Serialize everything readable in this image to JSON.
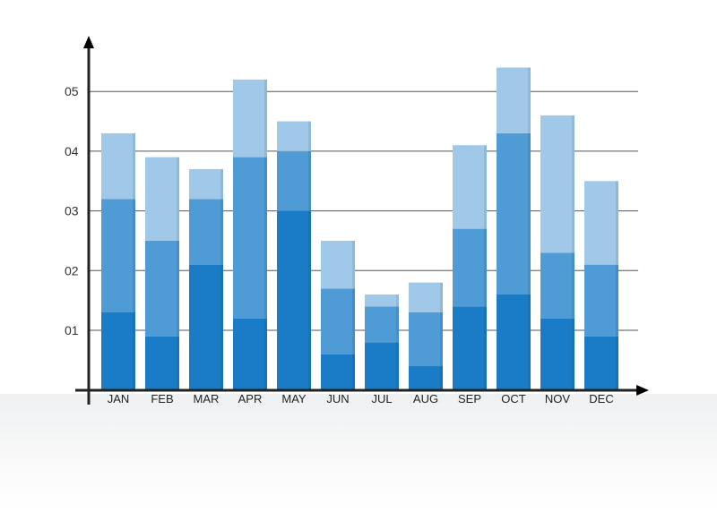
{
  "chart_data": {
    "type": "bar",
    "stacked": true,
    "categories": [
      "JAN",
      "FEB",
      "MAR",
      "APR",
      "MAY",
      "JUN",
      "JUL",
      "AUG",
      "SEP",
      "OCT",
      "NOV",
      "DEC"
    ],
    "series": [
      {
        "color": "#1a7cc6",
        "values": [
          1.3,
          0.9,
          2.1,
          1.2,
          3.0,
          0.6,
          0.8,
          0.4,
          1.4,
          1.6,
          1.2,
          0.9
        ]
      },
      {
        "color": "#4f9bd6",
        "values": [
          1.9,
          1.6,
          1.1,
          2.7,
          1.0,
          1.1,
          0.6,
          0.9,
          1.3,
          2.7,
          1.1,
          1.2
        ]
      },
      {
        "color": "#a0c8e8",
        "values": [
          1.1,
          1.4,
          0.5,
          1.3,
          0.5,
          0.8,
          0.2,
          0.5,
          1.4,
          1.1,
          2.3,
          1.4
        ]
      }
    ],
    "yticks": [
      1,
      2,
      3,
      4,
      5
    ],
    "ytick_labels": [
      "01",
      "02",
      "03",
      "04",
      "05"
    ],
    "ylim": [
      0,
      5.5
    ],
    "grid": true,
    "title": "",
    "xlabel": "",
    "ylabel": ""
  }
}
